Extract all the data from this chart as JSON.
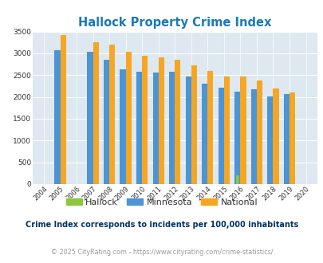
{
  "title": "Hallock Property Crime Index",
  "title_color": "#1a7ab5",
  "years": [
    2004,
    2005,
    2006,
    2007,
    2008,
    2009,
    2010,
    2011,
    2012,
    2013,
    2014,
    2015,
    2016,
    2017,
    2018,
    2019,
    2020
  ],
  "hallock": [
    0,
    0,
    0,
    0,
    0,
    0,
    0,
    0,
    0,
    0,
    0,
    0,
    200,
    0,
    0,
    0,
    0
  ],
  "minnesota": [
    0,
    3080,
    0,
    3040,
    2860,
    2630,
    2570,
    2560,
    2570,
    2460,
    2310,
    2220,
    2130,
    2180,
    2010,
    2060,
    0
  ],
  "national": [
    0,
    3420,
    0,
    3250,
    3200,
    3040,
    2950,
    2910,
    2850,
    2720,
    2590,
    2470,
    2470,
    2370,
    2200,
    2110,
    0
  ],
  "hallock_color": "#8dc63f",
  "minnesota_color": "#4d94d5",
  "national_color": "#f5a623",
  "bg_color": "#dde8f0",
  "ylim": [
    0,
    3500
  ],
  "yticks": [
    0,
    500,
    1000,
    1500,
    2000,
    2500,
    3000,
    3500
  ],
  "footnote": "Crime Index corresponds to incidents per 100,000 inhabitants",
  "footnote_color": "#003366",
  "copyright": "© 2025 CityRating.com - https://www.cityrating.com/crime-statistics/",
  "copyright_color": "#999999",
  "bar_width": 0.35
}
